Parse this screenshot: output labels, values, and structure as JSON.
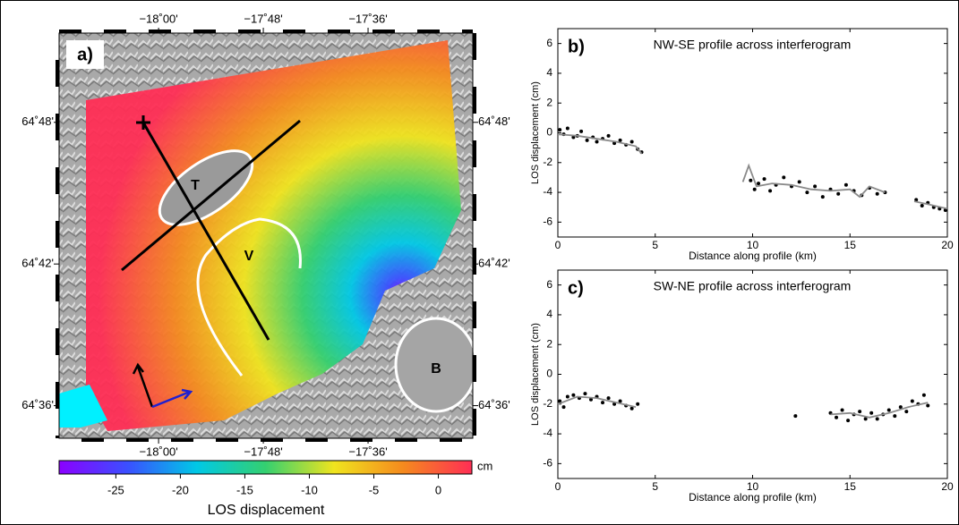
{
  "chart_data": [
    {
      "type": "map",
      "panel_label": "a)",
      "xlim": [
        -18.19,
        -17.4
      ],
      "ylim": [
        64.577,
        64.863
      ],
      "xticks": [
        {
          "value": -18.0,
          "label": "−18˚00'"
        },
        {
          "value": -17.8,
          "label": "−17˚48'"
        },
        {
          "value": -17.6,
          "label": "−17˚36'"
        }
      ],
      "yticks": [
        {
          "value": 64.8,
          "label": "64˚48'"
        },
        {
          "value": 64.7,
          "label": "64˚42'"
        },
        {
          "value": 64.6,
          "label": "64˚36'"
        }
      ],
      "annotations": [
        "T",
        "V",
        "B"
      ],
      "colorbar": {
        "lim": [
          -29.4,
          2.6
        ],
        "ticks": [
          -25,
          -20,
          -15,
          -10,
          -5,
          0
        ],
        "unit": "cm",
        "label": "LOS displacement",
        "colors": [
          "#8b00ff",
          "#3a50ff",
          "#00c8e6",
          "#34d070",
          "#f0e41e",
          "#f58a1e",
          "#ff2e55"
        ]
      }
    },
    {
      "type": "scatter",
      "panel_label": "b)",
      "title": "NW-SE profile across interferogram",
      "xlabel": "Distance along profile (km)",
      "ylabel": "LOS displacement (cm)",
      "xlim": [
        0,
        20
      ],
      "xticks": [
        0,
        5,
        10,
        15,
        20
      ],
      "ylim": [
        -7,
        7
      ],
      "yticks": [
        -6,
        -4,
        -2,
        0,
        2,
        4,
        6
      ],
      "series": [
        {
          "type": "scatter",
          "color": "#000000",
          "x": [
            0.1,
            0.3,
            0.5,
            0.8,
            1.0,
            1.2,
            1.5,
            1.8,
            2.0,
            2.3,
            2.6,
            2.9,
            3.2,
            3.5,
            3.8,
            4.1,
            4.3,
            9.9,
            10.1,
            10.3,
            10.6,
            10.9,
            11.2,
            11.6,
            12.0,
            12.4,
            12.8,
            13.2,
            13.6,
            14.0,
            14.4,
            14.8,
            15.2,
            15.6,
            16.0,
            16.4,
            16.8,
            18.4,
            18.7,
            19.0,
            19.3,
            19.6,
            19.9
          ],
          "values": [
            0.2,
            -0.1,
            0.3,
            -0.3,
            -0.2,
            0.1,
            -0.5,
            -0.3,
            -0.6,
            -0.4,
            -0.2,
            -0.7,
            -0.5,
            -0.8,
            -0.6,
            -1.1,
            -1.3,
            -3.2,
            -3.8,
            -3.4,
            -3.1,
            -3.9,
            -3.5,
            -3.0,
            -3.6,
            -3.3,
            -4.0,
            -3.6,
            -4.3,
            -3.8,
            -4.1,
            -3.5,
            -3.9,
            -4.2,
            -3.7,
            -4.1,
            -4.0,
            -4.5,
            -4.9,
            -4.7,
            -5.0,
            -5.1,
            -5.2
          ]
        },
        {
          "type": "line",
          "color": "#8a8a8a",
          "x": [
            0,
            1,
            2,
            3,
            4,
            4.3,
            null,
            9.5,
            9.8,
            10.2,
            11,
            12,
            13,
            14,
            15,
            15.5,
            16,
            16.8,
            null,
            18.3,
            19,
            20
          ],
          "values": [
            -0.1,
            -0.2,
            -0.4,
            -0.6,
            -0.9,
            -1.4,
            null,
            -3.3,
            -2.2,
            -3.6,
            -3.4,
            -3.5,
            -3.8,
            -3.9,
            -3.8,
            -4.3,
            -3.6,
            -4.0,
            null,
            -4.6,
            -4.8,
            -5.1
          ]
        }
      ]
    },
    {
      "type": "scatter",
      "panel_label": "c)",
      "title": "SW-NE profile across interferogram",
      "xlabel": "Distance along profile (km)",
      "ylabel": "LOS displacement (cm)",
      "xlim": [
        0,
        20
      ],
      "xticks": [
        0,
        5,
        10,
        15,
        20
      ],
      "ylim": [
        -7,
        7
      ],
      "yticks": [
        -6,
        -4,
        -2,
        0,
        2,
        4,
        6
      ],
      "series": [
        {
          "type": "scatter",
          "color": "#000000",
          "x": [
            0.1,
            0.3,
            0.5,
            0.8,
            1.1,
            1.4,
            1.7,
            2.0,
            2.3,
            2.6,
            2.9,
            3.2,
            3.5,
            3.8,
            4.1,
            12.2,
            14.0,
            14.3,
            14.6,
            14.9,
            15.2,
            15.5,
            15.8,
            16.1,
            16.4,
            16.7,
            17.0,
            17.3,
            17.6,
            17.9,
            18.2,
            18.5,
            18.8,
            19.0
          ],
          "values": [
            -1.8,
            -2.2,
            -1.5,
            -1.4,
            -1.6,
            -1.3,
            -1.7,
            -1.5,
            -1.9,
            -1.6,
            -2.0,
            -1.8,
            -2.1,
            -2.3,
            -2.0,
            -2.8,
            -2.6,
            -2.9,
            -2.4,
            -3.1,
            -2.7,
            -2.5,
            -3.0,
            -2.6,
            -3.0,
            -2.7,
            -2.4,
            -2.8,
            -2.2,
            -2.5,
            -1.8,
            -2.0,
            -1.4,
            -2.1
          ]
        },
        {
          "type": "line",
          "color": "#8a8a8a",
          "x": [
            0,
            1,
            2,
            3,
            4,
            null,
            14,
            15,
            16,
            17,
            18,
            19
          ],
          "values": [
            -2.0,
            -1.5,
            -1.6,
            -1.9,
            -2.2,
            null,
            -2.7,
            -2.6,
            -2.9,
            -2.6,
            -2.2,
            -1.9
          ]
        }
      ]
    }
  ]
}
